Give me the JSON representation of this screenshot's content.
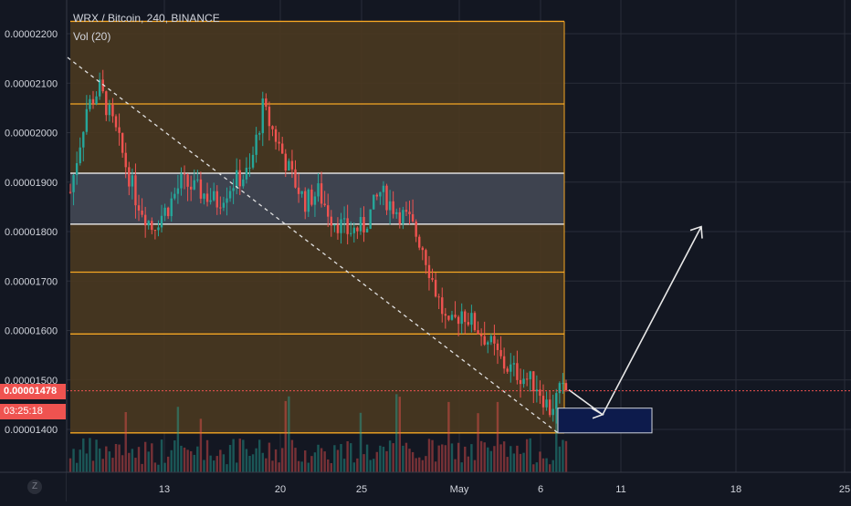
{
  "header": {
    "symbol_line": "WRX / Bitcoin, 240, BINANCE",
    "volume_line": "Vol (20)"
  },
  "price_tags": {
    "last_price": "0.00001478",
    "countdown": "03:25:18"
  },
  "logo_text": "Z",
  "colors": {
    "background": "#131722",
    "up_candle": "#26a69a",
    "down_candle": "#ef5350",
    "fib_fill": "#4a3820",
    "fib_line": "#f5a623",
    "zone_fill": "#3e434f",
    "target_box": "#0d1b4c"
  },
  "chart_data": {
    "type": "candlestick",
    "y_ticks": [
      "0.00002200",
      "0.00002100",
      "0.00002000",
      "0.00001900",
      "0.00001800",
      "0.00001700",
      "0.00001600",
      "0.00001500",
      "0.00001400"
    ],
    "x_ticks": [
      "13",
      "20",
      "25",
      "May",
      "6",
      "11",
      "18",
      "25"
    ],
    "ylim": [
      1.34e-05,
      2.26e-05
    ],
    "horizontal_levels": [
      2.225e-05,
      2.058e-05,
      1.718e-05,
      1.593e-05,
      1.393e-05
    ],
    "white_zone": [
      1.815e-05,
      1.918e-05
    ],
    "target_box_range": [
      1.393e-05,
      1.443e-05
    ],
    "close_path": [
      [
        0,
        1.88e-05
      ],
      [
        5,
        2.05e-05
      ],
      [
        9,
        2.09e-05
      ],
      [
        14,
        2e-05
      ],
      [
        20,
        1.87e-05
      ],
      [
        25,
        1.81e-05
      ],
      [
        30,
        1.85e-05
      ],
      [
        34,
        1.9e-05
      ],
      [
        40,
        1.88e-05
      ],
      [
        45,
        1.86e-05
      ],
      [
        50,
        1.9e-05
      ],
      [
        55,
        1.92e-05
      ],
      [
        59,
        2.05e-05
      ],
      [
        63,
        1.99e-05
      ],
      [
        68,
        1.91e-05
      ],
      [
        72,
        1.86e-05
      ],
      [
        76,
        1.88e-05
      ],
      [
        80,
        1.83e-05
      ],
      [
        85,
        1.8e-05
      ],
      [
        90,
        1.81e-05
      ],
      [
        95,
        1.88e-05
      ],
      [
        99,
        1.85e-05
      ],
      [
        104,
        1.82e-05
      ],
      [
        108,
        1.77e-05
      ],
      [
        112,
        1.68e-05
      ],
      [
        116,
        1.6e-05
      ],
      [
        120,
        1.64e-05
      ],
      [
        124,
        1.61e-05
      ],
      [
        128,
        1.58e-05
      ],
      [
        133,
        1.53e-05
      ],
      [
        138,
        1.51e-05
      ],
      [
        143,
        1.49e-05
      ],
      [
        147,
        1.44e-05
      ],
      [
        150,
        1.475e-05
      ],
      [
        152,
        1.478e-05
      ]
    ],
    "last_price": 1.478e-05
  }
}
